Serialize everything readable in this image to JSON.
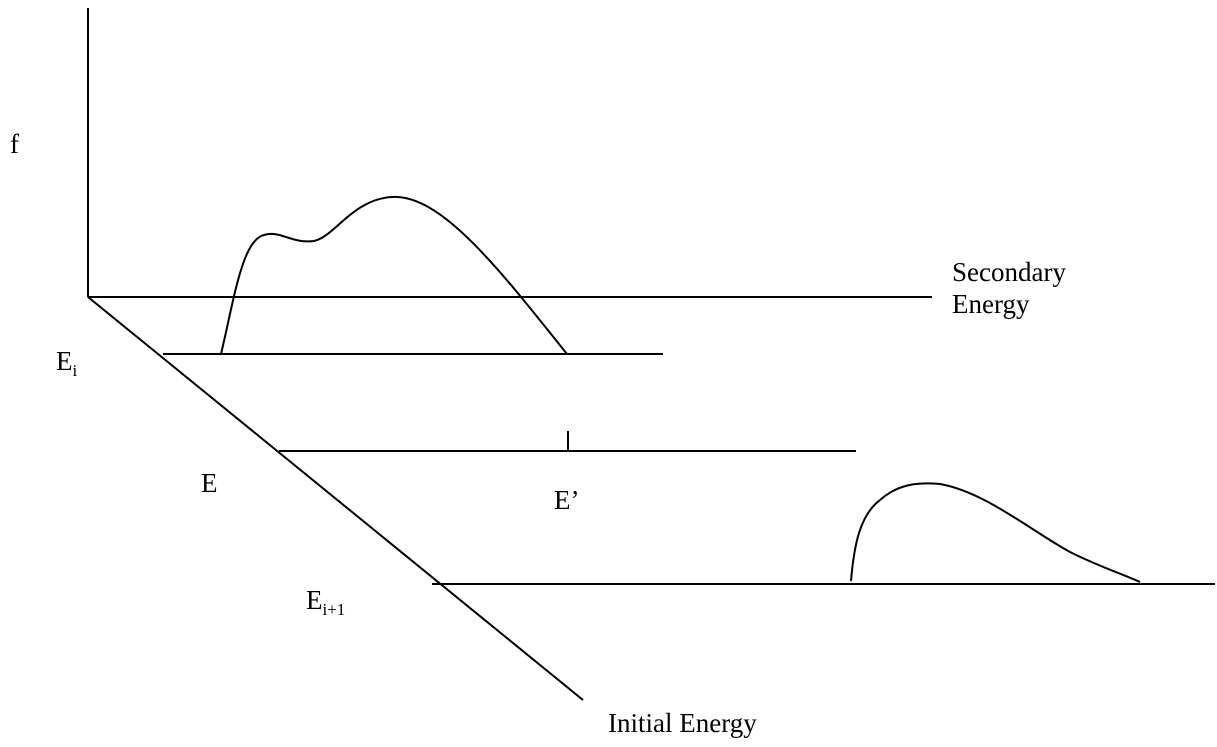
{
  "labels": {
    "f_axis": "f",
    "secondary_energy_line1": "Secondary",
    "secondary_energy_line2": "Energy",
    "initial_energy": "Initial Energy",
    "e_i_base": "E",
    "e_i_sub": "i",
    "e_label": "E",
    "e_prime": "E’",
    "e_i1_base": "E",
    "e_i1_sub": "i+1"
  }
}
